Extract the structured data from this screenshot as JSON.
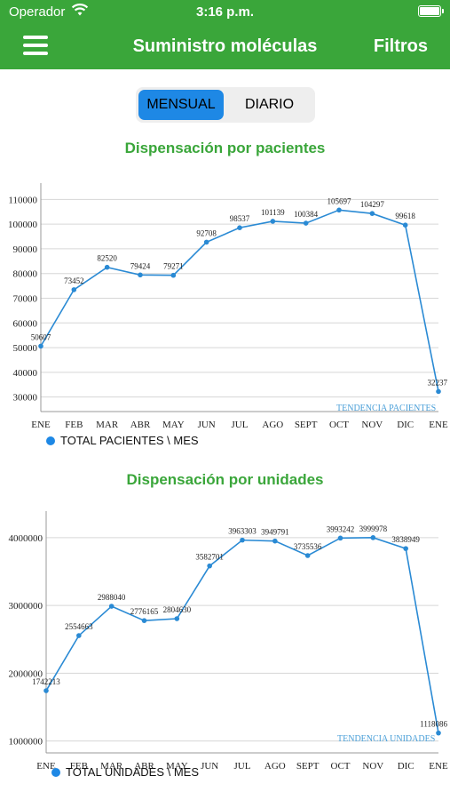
{
  "status_bar": {
    "carrier": "Operador",
    "time": "3:16 p.m."
  },
  "nav": {
    "title": "Suministro moléculas",
    "filters_label": "Filtros"
  },
  "segmented": {
    "monthly": "MENSUAL",
    "daily": "DIARIO",
    "selected": "MENSUAL"
  },
  "colors": {
    "brand_green": "#3aa63a",
    "series_blue": "#2a8ad4",
    "selected_blue": "#1e88e5"
  },
  "chart1": {
    "heading": "Dispensación por pacientes",
    "legend": "TOTAL PACIENTES \\ MES",
    "trend_label": "TENDENCIA PACIENTES"
  },
  "chart2": {
    "heading": "Dispensación por unidades",
    "legend": "TOTAL UNIDADES \\ MES",
    "trend_label": "TENDENCIA UNIDADES"
  },
  "chart_data": [
    {
      "type": "line",
      "categories": [
        "ENE",
        "FEB",
        "MAR",
        "ABR",
        "MAY",
        "JUN",
        "JUL",
        "AGO",
        "SEPT",
        "OCT",
        "NOV",
        "DIC",
        "ENE"
      ],
      "series": [
        {
          "name": "TOTAL PACIENTES \\ MES",
          "values": [
            50607,
            73452,
            82520,
            79424,
            79271,
            92708,
            98537,
            101139,
            100384,
            105697,
            104297,
            99618,
            32237
          ],
          "labels": [
            "50607",
            "73452",
            "82520",
            "79424",
            "79271",
            "92708",
            "98537",
            "101139",
            "100384",
            "105697",
            "104297",
            "99618",
            "32237"
          ]
        }
      ],
      "yticks": [
        30000,
        40000,
        50000,
        60000,
        70000,
        80000,
        90000,
        100000,
        110000
      ],
      "ylim": [
        27000,
        113000
      ],
      "grid": true,
      "legend_position": "bottom-left"
    },
    {
      "type": "line",
      "categories": [
        "ENE",
        "FEB",
        "MAR",
        "ABR",
        "MAY",
        "JUN",
        "JUL",
        "AGO",
        "SEPT",
        "OCT",
        "NOV",
        "DIC",
        "ENE"
      ],
      "series": [
        {
          "name": "TOTAL UNIDADES \\ MES",
          "values": [
            1742213,
            2554663,
            2988040,
            2776165,
            2804630,
            3582701,
            3963303,
            3949791,
            3735536,
            3993242,
            3999978,
            3838949,
            1118086
          ],
          "labels": [
            "1742213",
            "2554663",
            "2988040",
            "2776165",
            "2804630",
            "3582701",
            "3963303",
            "3949791",
            "3735536",
            "3993242",
            "3999978",
            "3838949",
            "1118086"
          ]
        }
      ],
      "yticks": [
        1000000,
        2000000,
        3000000,
        4000000
      ],
      "ylim": [
        930000,
        4260000
      ],
      "grid": true,
      "legend_position": "bottom-left"
    }
  ]
}
